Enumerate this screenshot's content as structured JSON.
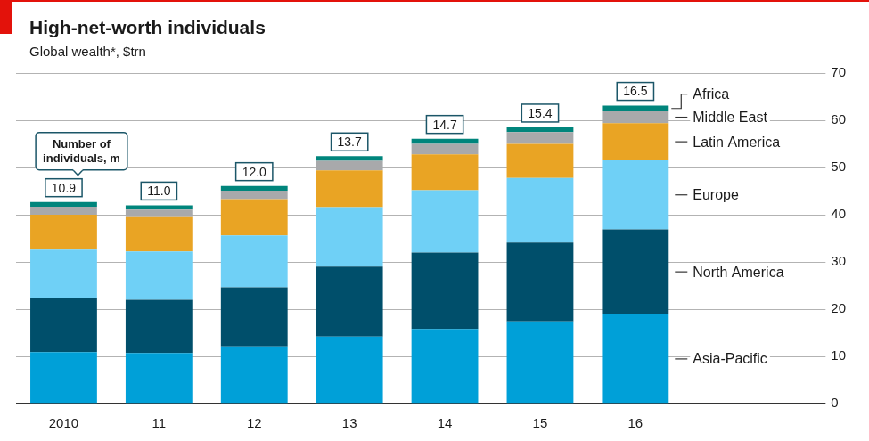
{
  "chart_data": {
    "type": "bar",
    "title": "High-net-worth individuals",
    "subtitle": "Global wealth*, $trn",
    "categories": [
      "2010",
      "11",
      "12",
      "13",
      "14",
      "15",
      "16"
    ],
    "series": [
      {
        "name": "Asia-Pacific",
        "color": "#00a0d8",
        "values": [
          10.9,
          10.7,
          12.1,
          14.2,
          15.8,
          17.4,
          18.9
        ]
      },
      {
        "name": "North America",
        "color": "#004f6b",
        "values": [
          11.4,
          11.3,
          12.5,
          14.8,
          16.2,
          16.7,
          18.0
        ]
      },
      {
        "name": "Europe",
        "color": "#6fd0f6",
        "values": [
          10.3,
          10.2,
          11.0,
          12.6,
          13.2,
          13.7,
          14.6
        ]
      },
      {
        "name": "Latin America",
        "color": "#e9a424",
        "values": [
          7.4,
          7.3,
          7.7,
          7.8,
          7.6,
          7.2,
          7.9
        ]
      },
      {
        "name": "Middle East",
        "color": "#a8a9ab",
        "values": [
          1.7,
          1.6,
          1.8,
          2.0,
          2.2,
          2.5,
          2.5
        ]
      },
      {
        "name": "Africa",
        "color": "#00857c",
        "values": [
          1.0,
          0.9,
          1.0,
          1.0,
          1.1,
          1.0,
          1.2
        ]
      }
    ],
    "stacked": true,
    "ylim": [
      0,
      70
    ],
    "yticks": [
      0,
      10,
      20,
      30,
      40,
      50,
      60,
      70
    ],
    "grid": true,
    "annotations": [
      {
        "text": "Number of individuals, m",
        "values": [
          10.9,
          11.0,
          12.0,
          13.7,
          14.7,
          15.4,
          16.5
        ],
        "value_labels": [
          "10.9",
          "11.0",
          "12.0",
          "13.7",
          "14.7",
          "15.4",
          "16.5"
        ]
      }
    ]
  }
}
